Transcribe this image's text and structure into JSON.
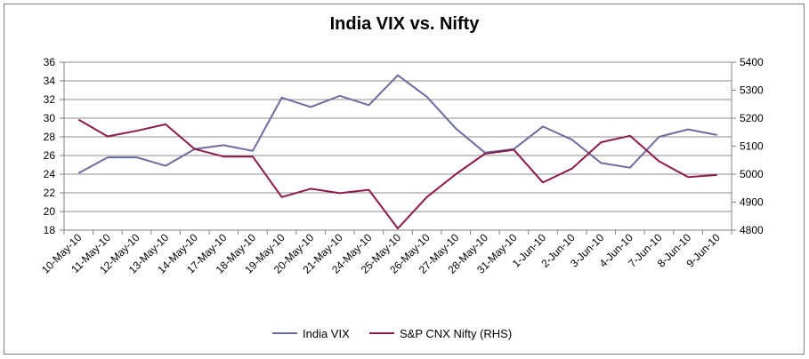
{
  "chart_data": {
    "type": "line",
    "title": "India VIX vs. Nifty",
    "categories": [
      "10-May-10",
      "11-May-10",
      "12-May-10",
      "13-May-10",
      "14-May-10",
      "17-May-10",
      "18-May-10",
      "19-May-10",
      "20-May-10",
      "21-May-10",
      "24-May-10",
      "25-May-10",
      "26-May-10",
      "27-May-10",
      "28-May-10",
      "31-May-10",
      "1-Jun-10",
      "2-Jun-10",
      "3-Jun-10",
      "4-Jun-10",
      "7-Jun-10",
      "8-Jun-10",
      "9-Jun-10"
    ],
    "series": [
      {
        "name": "India VIX",
        "axis": "left",
        "color": "#6b6b9e",
        "values": [
          24.1,
          25.8,
          25.8,
          24.9,
          26.7,
          27.1,
          26.5,
          32.2,
          31.2,
          32.4,
          31.4,
          34.6,
          32.3,
          28.9,
          26.3,
          26.7,
          29.1,
          27.7,
          25.2,
          24.7,
          28.0,
          28.8,
          28.2
        ]
      },
      {
        "name": "S&P CNX Nifty (RHS)",
        "axis": "right",
        "color": "#8b1a4a",
        "values": [
          5195,
          5135,
          5155,
          5178,
          5090,
          5063,
          5063,
          4918,
          4948,
          4932,
          4944,
          4806,
          4918,
          5000,
          5073,
          5087,
          4970,
          5020,
          5114,
          5137,
          5046,
          4990,
          4997
        ]
      }
    ],
    "ylim_left": [
      18,
      36
    ],
    "ylim_right": [
      4800,
      5400
    ],
    "yticks_left": [
      "18",
      "20",
      "22",
      "24",
      "26",
      "28",
      "30",
      "32",
      "34",
      "36"
    ],
    "yticks_right": [
      "4800",
      "4900",
      "5000",
      "5100",
      "5200",
      "5300",
      "5400"
    ],
    "grid": "horizontal",
    "legend": "bottom"
  }
}
